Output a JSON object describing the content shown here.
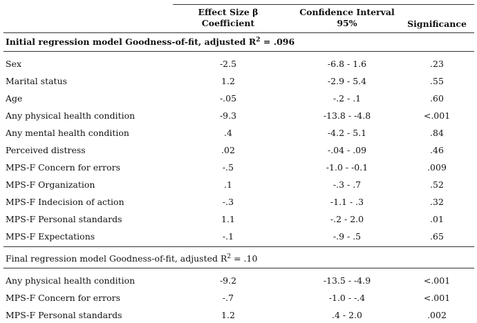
{
  "table": {
    "header": [
      [
        "Effect Size  β",
        "Coefficient"
      ],
      [
        "Confidence  Interval",
        "95%"
      ],
      [
        "Significance"
      ]
    ],
    "sections": [
      {
        "title": {
          "text": "Initial regression model Goodness-of-fit, adjusted R",
          "sup": "2",
          "tail": " = .096"
        },
        "rows": [
          [
            "Sex",
            "-2.5",
            "-6.8 - 1.6",
            ".23"
          ],
          [
            "Marital status",
            "1.2",
            "-2.9 - 5.4",
            ".55"
          ],
          [
            "Age",
            "-.05",
            "-.2 - .1",
            ".60"
          ],
          [
            "Any physical health condition",
            "-9.3",
            "-13.8 - -4.8",
            "<.001"
          ],
          [
            "Any mental health condition",
            ".4",
            "-4.2 - 5.1",
            ".84"
          ],
          [
            "Perceived distress",
            ".02",
            "-.04 - .09",
            ".46"
          ],
          [
            "MPS-F Concern for errors",
            "-.5",
            "-1.0 - -0.1",
            ".009"
          ],
          [
            "MPS-F Organization",
            ".1",
            "-.3 - .7",
            ".52"
          ],
          [
            "MPS-F Indecision of action",
            "-.3",
            "-1.1 - .3",
            ".32"
          ],
          [
            "MPS-F Personal standards",
            "1.1",
            "-.2 - 2.0",
            ".01"
          ],
          [
            "MPS-F Expectations",
            "-.1",
            "-.9 - .5",
            ".65"
          ]
        ]
      },
      {
        "title": {
          "text": "Final regression model Goodness-of-fit, adjusted R",
          "sup": "2",
          "tail": " = .10"
        },
        "rows": [
          [
            "Any physical health condition",
            "-9.2",
            "-13.5 - -4.9",
            "<.001"
          ],
          [
            "MPS-F Concern for errors",
            "-.7",
            "-1.0 - -.4",
            "<.001"
          ],
          [
            "MPS-F Personal standards",
            "1.2",
            ".4 - 2.0",
            ".002"
          ]
        ]
      }
    ]
  }
}
